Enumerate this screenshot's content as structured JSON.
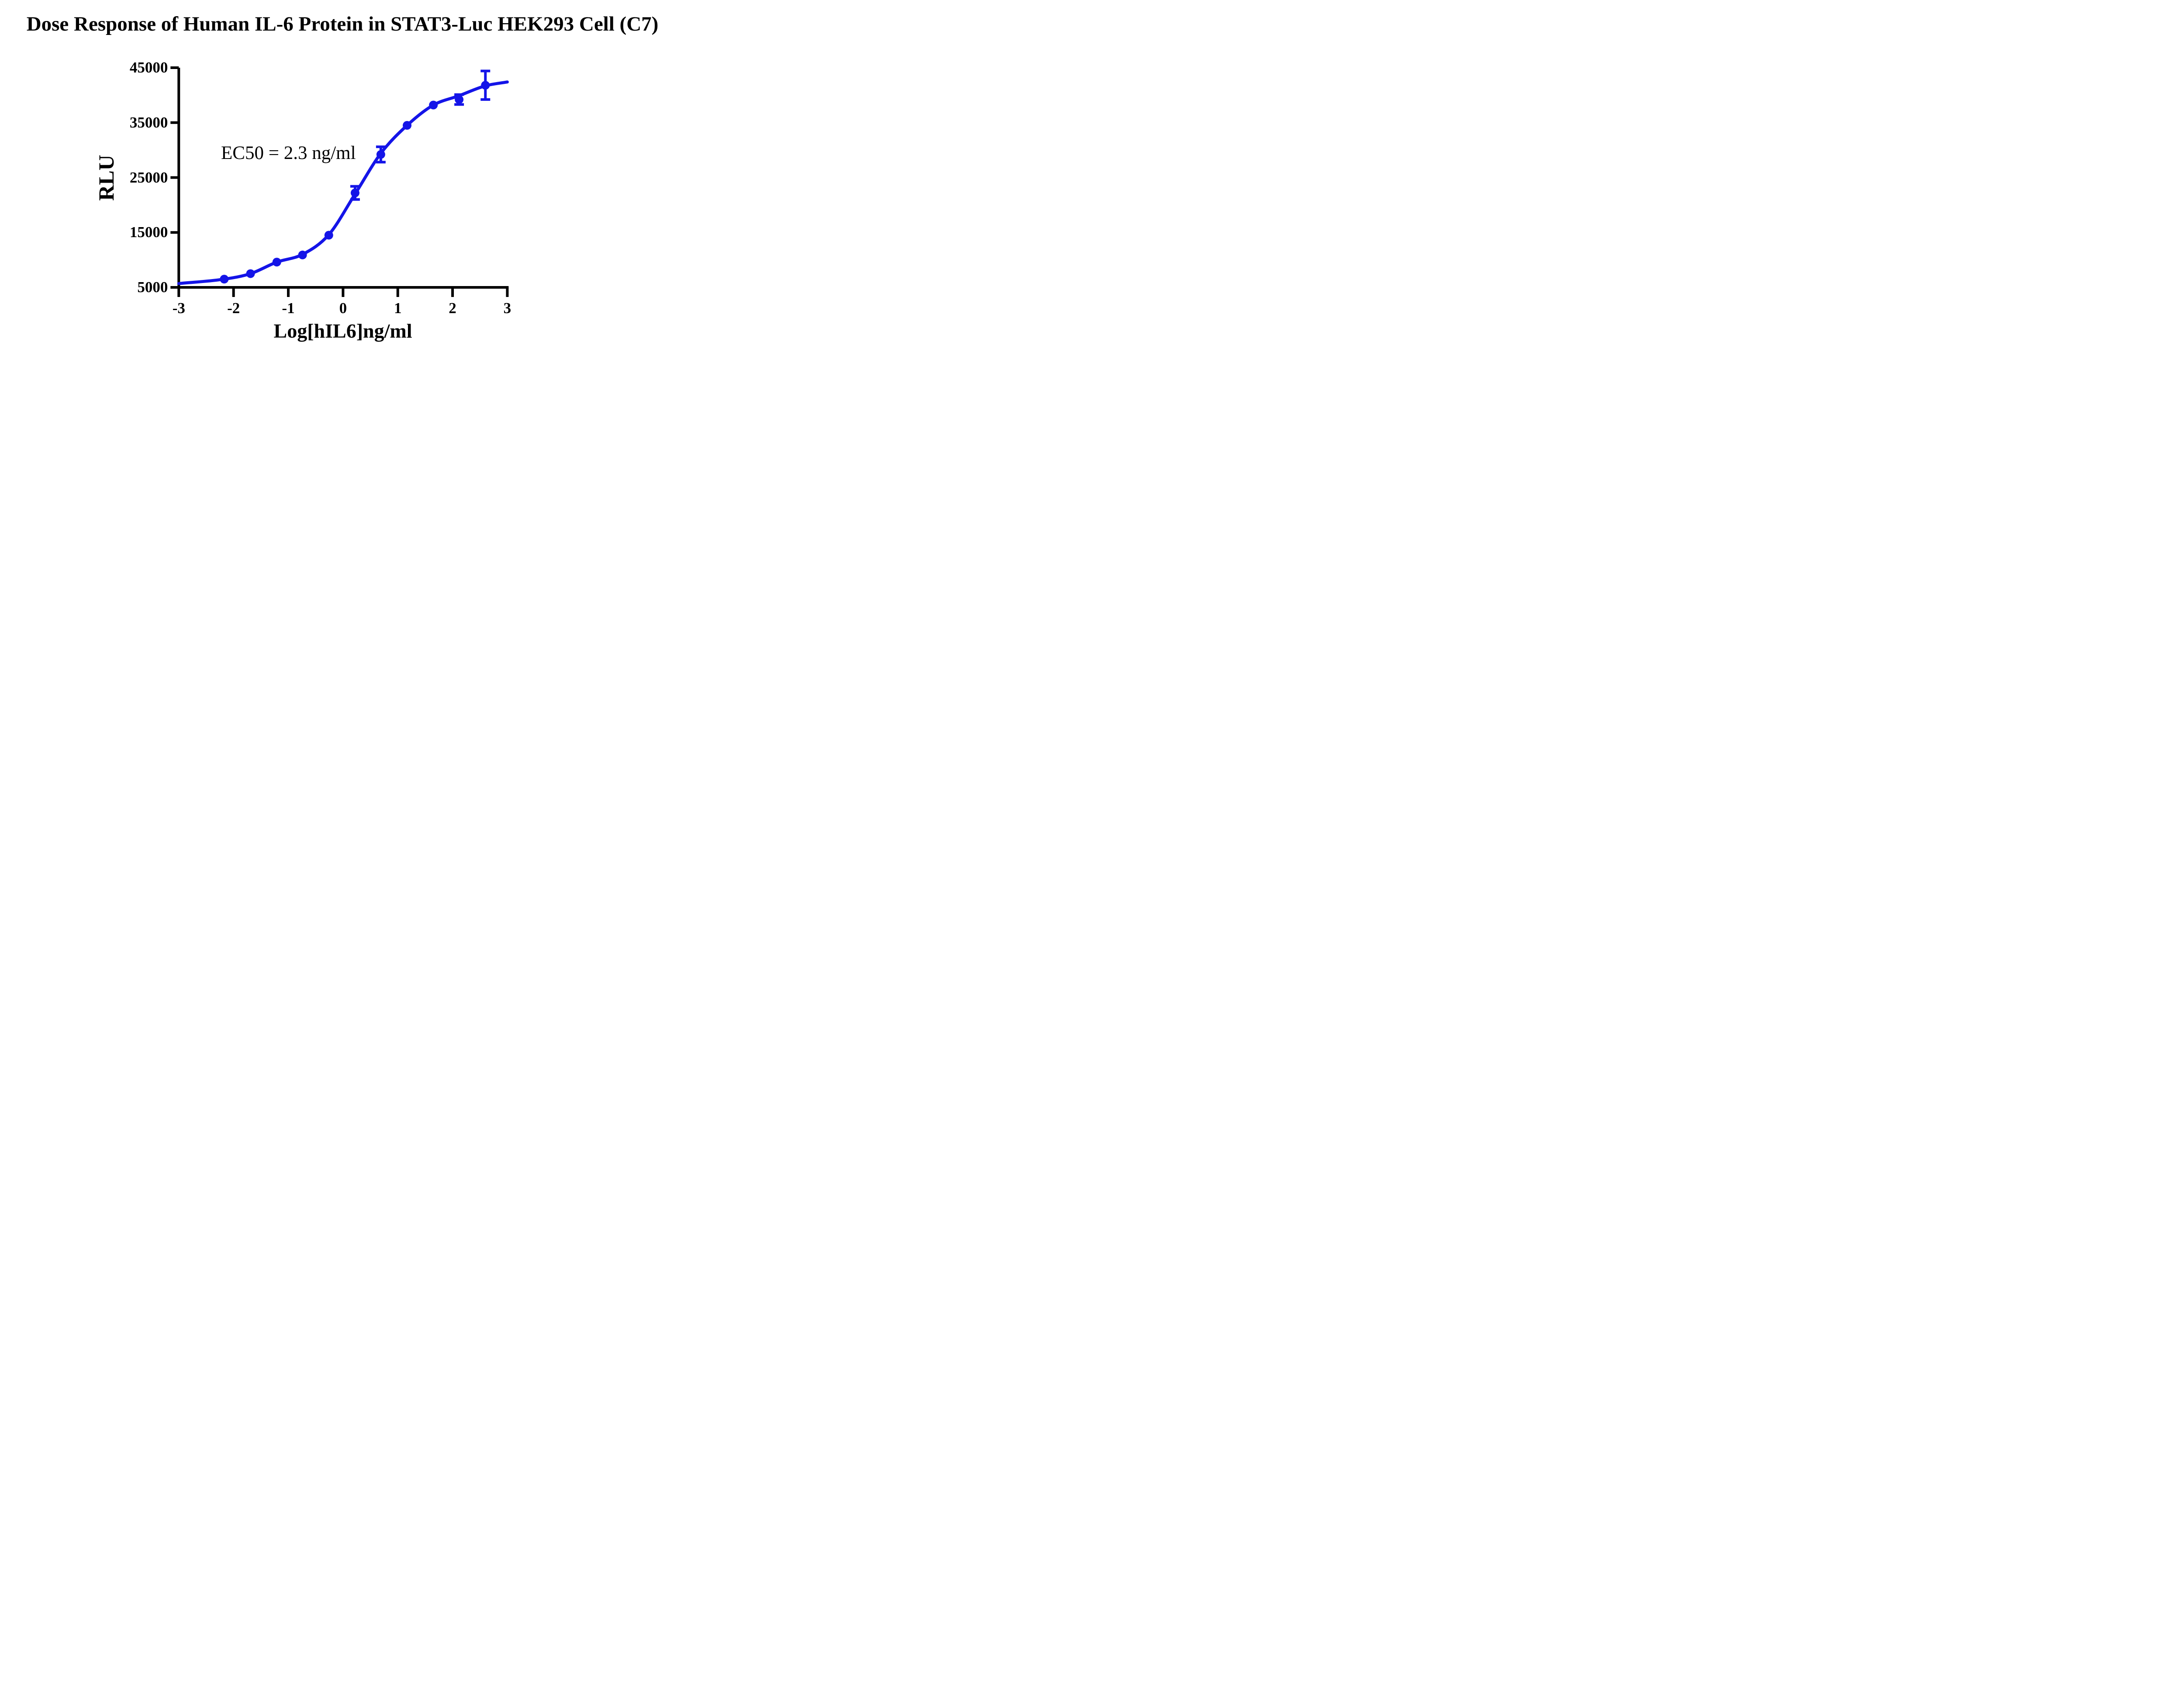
{
  "colors": {
    "series": "#1414e8",
    "axis": "#000000",
    "text": "#000000",
    "background": "#ffffff"
  },
  "annotation": {
    "text": "EC50 = 2.3 ng/ml"
  },
  "chart_data": {
    "type": "scatter",
    "title": "Dose Response of Human IL-6 Protein in STAT3-Luc HEK293 Cell (C7)",
    "xlabel": "Log[hIL6]ng/ml",
    "ylabel": "RLU",
    "xlim": [
      -3,
      3
    ],
    "ylim": [
      5000,
      45000
    ],
    "x_ticks": [
      -3,
      -2,
      -1,
      0,
      1,
      2,
      3
    ],
    "y_ticks": [
      5000,
      15000,
      25000,
      35000,
      45000
    ],
    "grid": false,
    "legend": null,
    "series": [
      {
        "name": "hIL-6",
        "marker": "circle",
        "points": [
          {
            "x": -2.17,
            "y": 6500,
            "err": 0
          },
          {
            "x": -1.69,
            "y": 7500,
            "err": 0
          },
          {
            "x": -1.21,
            "y": 9600,
            "err": 0
          },
          {
            "x": -0.74,
            "y": 10900,
            "err": 0
          },
          {
            "x": -0.26,
            "y": 14500,
            "err": 0
          },
          {
            "x": 0.22,
            "y": 22200,
            "err": 1200
          },
          {
            "x": 0.69,
            "y": 29200,
            "err": 1400
          },
          {
            "x": 1.17,
            "y": 34500,
            "err": 0
          },
          {
            "x": 1.65,
            "y": 38200,
            "err": 0
          },
          {
            "x": 2.12,
            "y": 39200,
            "err": 900
          },
          {
            "x": 2.6,
            "y": 41800,
            "err": 2600
          }
        ]
      }
    ],
    "fit_curve": {
      "name": "sigmoidal fit",
      "ec50_ng_ml": 2.3,
      "anchors": [
        [
          -3.0,
          5700
        ],
        [
          -2.17,
          6500
        ],
        [
          -1.69,
          7500
        ],
        [
          -1.21,
          9600
        ],
        [
          -0.74,
          11000
        ],
        [
          -0.26,
          14600
        ],
        [
          0.22,
          22000
        ],
        [
          0.69,
          29400
        ],
        [
          1.17,
          34500
        ],
        [
          1.65,
          38200
        ],
        [
          2.12,
          39900
        ],
        [
          2.6,
          41700
        ],
        [
          3.0,
          42400
        ]
      ]
    }
  }
}
